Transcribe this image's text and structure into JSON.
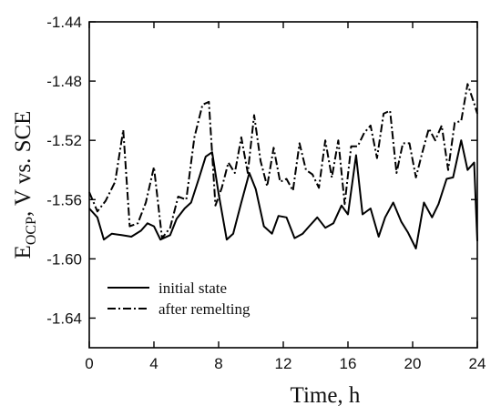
{
  "chart_data": {
    "type": "line",
    "xlabel": "Time, h",
    "ylabel": {
      "main": "E",
      "subscript": "OCP",
      "rest": ", V vs. SCE"
    },
    "xlim": [
      0,
      24
    ],
    "ylim": [
      -1.66,
      -1.44
    ],
    "y_inverted": true,
    "x_ticks": [
      "0",
      "4",
      "8",
      "12",
      "16",
      "20",
      "24"
    ],
    "x_tick_values": [
      0,
      4,
      8,
      12,
      16,
      20,
      24
    ],
    "y_ticks": [
      "-1.44",
      "-1.48",
      "-1.52",
      "-1.56",
      "-1.60",
      "-1.64"
    ],
    "y_tick_values": [
      -1.44,
      -1.48,
      -1.52,
      -1.56,
      -1.6,
      -1.64
    ],
    "grid": false,
    "legend": "lower-left",
    "series": [
      {
        "name": "initial state",
        "style": "solid",
        "x": [
          0,
          0.5,
          0.9,
          1.4,
          2.0,
          2.6,
          3.2,
          3.6,
          4.0,
          4.4,
          5.0,
          5.4,
          5.9,
          6.3,
          6.8,
          7.2,
          7.6,
          8.0,
          8.5,
          8.9,
          9.4,
          9.9,
          10.3,
          10.8,
          11.3,
          11.7,
          12.2,
          12.7,
          13.2,
          13.6,
          14.1,
          14.6,
          15.1,
          15.6,
          16.0,
          16.5,
          16.9,
          17.4,
          17.9,
          18.3,
          18.8,
          19.3,
          19.7,
          20.2,
          20.7,
          21.2,
          21.6,
          22.1,
          22.5,
          23.0,
          23.4,
          23.8,
          24.0
        ],
        "y": [
          -1.566,
          -1.572,
          -1.587,
          -1.583,
          -1.584,
          -1.585,
          -1.581,
          -1.576,
          -1.578,
          -1.587,
          -1.584,
          -1.573,
          -1.566,
          -1.562,
          -1.545,
          -1.531,
          -1.528,
          -1.556,
          -1.587,
          -1.583,
          -1.562,
          -1.542,
          -1.553,
          -1.578,
          -1.583,
          -1.571,
          -1.572,
          -1.586,
          -1.583,
          -1.578,
          -1.572,
          -1.579,
          -1.576,
          -1.564,
          -1.57,
          -1.53,
          -1.57,
          -1.566,
          -1.585,
          -1.572,
          -1.562,
          -1.575,
          -1.582,
          -1.593,
          -1.562,
          -1.572,
          -1.563,
          -1.546,
          -1.545,
          -1.52,
          -1.54,
          -1.535,
          -1.588
        ]
      },
      {
        "name": "after remelting",
        "style": "dashdot",
        "x": [
          0,
          0.5,
          1.0,
          1.6,
          2.1,
          2.5,
          3.0,
          3.5,
          4.0,
          4.5,
          5.0,
          5.5,
          6.0,
          6.5,
          7.0,
          7.4,
          7.8,
          8.2,
          8.6,
          9.0,
          9.4,
          9.8,
          10.2,
          10.6,
          11.0,
          11.4,
          11.8,
          12.2,
          12.6,
          13.0,
          13.4,
          13.8,
          14.2,
          14.6,
          15.0,
          15.4,
          15.8,
          16.2,
          16.6,
          17.0,
          17.4,
          17.8,
          18.2,
          18.6,
          19.0,
          19.4,
          19.8,
          20.2,
          20.6,
          21.0,
          21.4,
          21.8,
          22.2,
          22.6,
          23.0,
          23.4,
          23.8,
          24.0
        ],
        "y": [
          -1.555,
          -1.568,
          -1.561,
          -1.548,
          -1.513,
          -1.578,
          -1.576,
          -1.562,
          -1.538,
          -1.586,
          -1.579,
          -1.558,
          -1.56,
          -1.518,
          -1.496,
          -1.494,
          -1.564,
          -1.552,
          -1.535,
          -1.542,
          -1.518,
          -1.542,
          -1.503,
          -1.534,
          -1.551,
          -1.525,
          -1.548,
          -1.546,
          -1.554,
          -1.522,
          -1.54,
          -1.543,
          -1.552,
          -1.52,
          -1.545,
          -1.52,
          -1.563,
          -1.524,
          -1.524,
          -1.515,
          -1.51,
          -1.532,
          -1.502,
          -1.5,
          -1.542,
          -1.522,
          -1.522,
          -1.545,
          -1.528,
          -1.512,
          -1.52,
          -1.51,
          -1.54,
          -1.508,
          -1.507,
          -1.482,
          -1.495,
          -1.502
        ]
      }
    ]
  }
}
